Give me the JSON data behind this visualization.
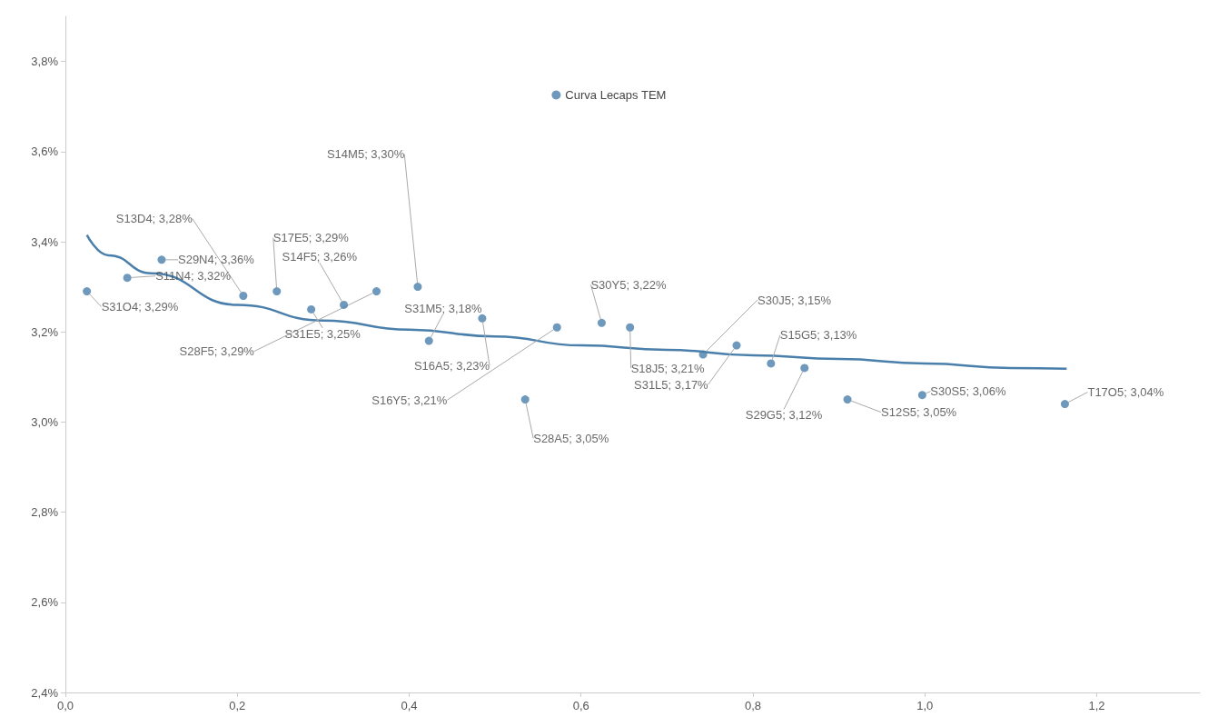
{
  "chart_data": {
    "type": "scatter",
    "legend": "top",
    "grid": false,
    "marker": "circle",
    "xlim": [
      0,
      1.32
    ],
    "ylim": [
      2.4,
      3.9
    ],
    "xticks": [
      {
        "value": 0,
        "label": "0,0"
      },
      {
        "value": 0.2,
        "label": "0,2"
      },
      {
        "value": 0.4,
        "label": "0,4"
      },
      {
        "value": 0.6,
        "label": "0,6"
      },
      {
        "value": 0.8,
        "label": "0,8"
      },
      {
        "value": 1,
        "label": "1,0"
      },
      {
        "value": 1.2,
        "label": "1,2"
      }
    ],
    "yticks": [
      {
        "value": 2.4,
        "label": "2,4%"
      },
      {
        "value": 2.6,
        "label": "2,6%"
      },
      {
        "value": 2.8,
        "label": "2,8%"
      },
      {
        "value": 3,
        "label": "3,0%"
      },
      {
        "value": 3.2,
        "label": "3,2%"
      },
      {
        "value": 3.4,
        "label": "3,4%"
      },
      {
        "value": 3.6,
        "label": "3,6%"
      },
      {
        "value": 3.8,
        "label": "3,8%"
      }
    ],
    "series": [
      {
        "name": "Curva Lecaps TEM",
        "color": "#4a7fab",
        "x": [
          0.025,
          0.072,
          0.112,
          0.207,
          0.246,
          0.286,
          0.324,
          0.362,
          0.41,
          0.423,
          0.485,
          0.572,
          0.535,
          0.624,
          0.657,
          0.742,
          0.781,
          0.821,
          0.86,
          0.91,
          0.997,
          1.163
        ],
        "values": [
          3.29,
          3.32,
          3.36,
          3.28,
          3.29,
          3.25,
          3.26,
          3.29,
          3.3,
          3.18,
          3.23,
          3.21,
          3.05,
          3.22,
          3.21,
          3.15,
          3.17,
          3.13,
          3.12,
          3.05,
          3.06,
          3.04
        ],
        "value_labels": [
          "S31O4; 3,29%",
          "S11N4; 3,32%",
          "S29N4; 3,36%",
          "S13D4; 3,28%",
          "S17E5; 3,29%",
          "S31E5; 3,25%",
          "S14F5; 3,26%",
          "S28F5; 3,29%",
          "S14M5; 3,30%",
          "S31M5; 3,18%",
          "S16A5; 3,23%",
          "S16Y5; 3,21%",
          "S28A5; 3,05%",
          "S30Y5; 3,22%",
          "S18J5; 3,21%",
          "S30J5; 3,15%",
          "S31L5; 3,17%",
          "S15G5; 3,13%",
          "S29G5; 3,12%",
          "S12S5; 3,05%",
          "S30S5; 3,06%",
          "T17O5; 3,04%"
        ]
      },
      {
        "type": "line",
        "color": "#4a7fab",
        "marker": "none",
        "line_style": "solid",
        "x": [
          0.025,
          0.05,
          0.1,
          0.2,
          0.3,
          0.4,
          0.5,
          0.6,
          0.7,
          0.8,
          0.9,
          1.0,
          1.1,
          1.165
        ],
        "values": [
          3.415,
          3.37,
          3.33,
          3.26,
          3.225,
          3.205,
          3.19,
          3.17,
          3.16,
          3.148,
          3.14,
          3.13,
          3.12,
          3.118
        ]
      }
    ]
  }
}
